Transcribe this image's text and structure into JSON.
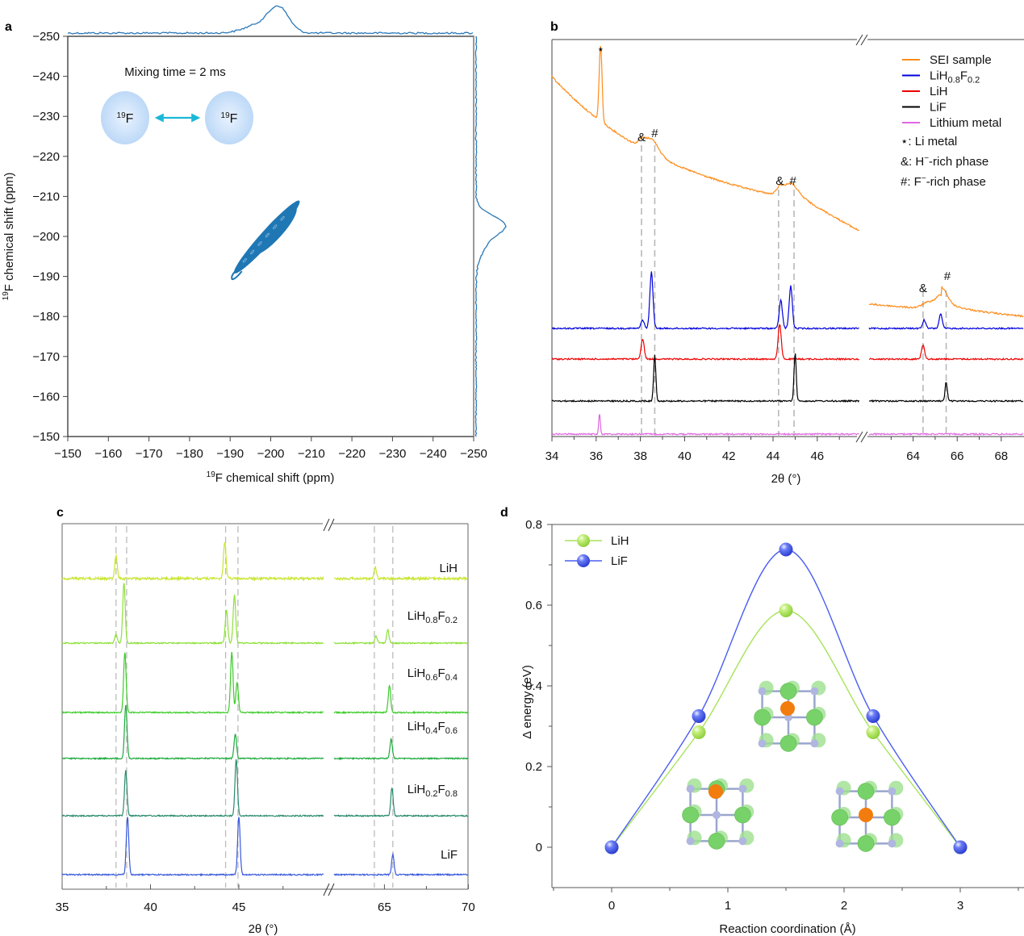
{
  "chart_data": [
    {
      "panel": "a",
      "type": "heatmap",
      "subtype": "2D 19F-19F NMR exchange contour",
      "xlabel_sup": "19",
      "xlabel": "F chemical shift (ppm)",
      "ylabel_sup": "19",
      "ylabel": "F chemical shift (ppm)",
      "xlim": [
        -150,
        -250
      ],
      "ylim": [
        -150,
        -250
      ],
      "xticks": [
        -150,
        -160,
        -170,
        -180,
        -190,
        -200,
        -210,
        -220,
        -230,
        -240,
        -250
      ],
      "yticks": [
        -150,
        -160,
        -170,
        -180,
        -190,
        -200,
        -210,
        -220,
        -230,
        -240,
        -250
      ],
      "tick_labels_x": [
        "−150",
        "−160",
        "−170",
        "−180",
        "−190",
        "−200",
        "−210",
        "−220",
        "−230",
        "−240",
        "−250"
      ],
      "tick_labels_y": [
        "−150",
        "−160",
        "−170",
        "−180",
        "−190",
        "−200",
        "−210",
        "−220",
        "−230",
        "−240",
        "−250"
      ],
      "annotation": "Mixing time = 2 ms",
      "nucleus_left": {
        "sup": "19",
        "label": "F"
      },
      "nucleus_right": {
        "sup": "19",
        "label": "F"
      },
      "contour": {
        "diagonal_from": [
          -190.5,
          -190.5
        ],
        "diagonal_to": [
          -206,
          -208
        ],
        "peak_center": [
          -203,
          -203
        ],
        "color": "#1f77b4"
      },
      "projection_top": {
        "peak_ppm": -202,
        "shoulder_ppm": -197,
        "color": "#1f77b4"
      },
      "projection_right": {
        "peak_ppm": -203,
        "shoulder_ppm": -199,
        "color": "#1f77b4"
      }
    },
    {
      "panel": "b",
      "type": "line",
      "subtype": "XRD patterns (stacked, broken x-axis)",
      "xlabel": "2θ (°)",
      "x_segments": [
        [
          34,
          47.9
        ],
        [
          62,
          69
        ]
      ],
      "xticks": [
        34,
        36,
        38,
        40,
        42,
        44,
        46,
        64,
        66,
        68
      ],
      "tick_labels": [
        "34",
        "36",
        "38",
        "40",
        "42",
        "44",
        "46",
        "64",
        "66",
        "68"
      ],
      "reference_lines": [
        38.05,
        38.65,
        44.25,
        44.95,
        64.45,
        65.5
      ],
      "series": [
        {
          "name": "SEI sample",
          "color": "#ff8c1a",
          "peaks": [
            {
              "x": 36.2,
              "label": "⋆"
            },
            {
              "x": 38.1,
              "label": "&"
            },
            {
              "x": 38.6,
              "label": "#"
            },
            {
              "x": 44.3,
              "label": "&"
            },
            {
              "x": 44.9,
              "label": "#"
            },
            {
              "x": 64.5,
              "label": "&"
            },
            {
              "x": 65.3,
              "label": "#"
            }
          ]
        },
        {
          "name": "LiH0.8F0.2",
          "name_main": "LiH",
          "sub1": "0.8",
          "mid": "F",
          "sub2": "0.2",
          "color": "#0000dd",
          "peaks": [
            {
              "x": 38.1,
              "h": 0.15
            },
            {
              "x": 38.5,
              "h": 1.0
            },
            {
              "x": 44.35,
              "h": 0.5
            },
            {
              "x": 44.8,
              "h": 0.75
            },
            {
              "x": 64.5,
              "h": 0.15
            },
            {
              "x": 65.25,
              "h": 0.25
            }
          ]
        },
        {
          "name": "LiH",
          "color": "#ee0000",
          "peaks": [
            {
              "x": 38.1,
              "h": 0.55
            },
            {
              "x": 44.3,
              "h": 0.95
            },
            {
              "x": 64.45,
              "h": 0.4
            }
          ]
        },
        {
          "name": "LiF",
          "color": "#000000",
          "peaks": [
            {
              "x": 38.65,
              "h": 0.95
            },
            {
              "x": 45.0,
              "h": 1.0
            },
            {
              "x": 65.5,
              "h": 0.4
            }
          ]
        },
        {
          "name": "Lithium metal",
          "color": "#e066e0",
          "peaks": [
            {
              "x": 36.15,
              "h": 0.8
            }
          ]
        }
      ],
      "annotations": [
        "⋆: Li metal",
        "&: H⁻-rich phase",
        "#: F⁻-rich phase"
      ],
      "annotation_parts": [
        {
          "sym": "⋆",
          "text": ": Li metal"
        },
        {
          "sym": "&",
          "text": ": H",
          "sup": "−",
          "rest": "-rich phase"
        },
        {
          "sym": "#",
          "text": ": F",
          "sup": "−",
          "rest": "-rich phase"
        }
      ],
      "legend_position": "top-right"
    },
    {
      "panel": "c",
      "type": "line",
      "subtype": "XRD patterns of LiH(1-x)F(x) solid solutions (stacked, broken x-axis)",
      "xlabel": "2θ (°)",
      "x_segments": [
        [
          35,
          50
        ],
        [
          62,
          70
        ]
      ],
      "xticks": [
        35,
        40,
        45,
        65,
        70
      ],
      "tick_labels": [
        "35",
        "40",
        "45",
        "65",
        "70"
      ],
      "reference_lines": [
        38.05,
        38.65,
        44.25,
        44.95,
        64.4,
        65.5
      ],
      "series": [
        {
          "name": "LiH",
          "main": "LiH",
          "sub1": "",
          "mid": "",
          "sub2": "",
          "color": "#c8e632",
          "peaks": [
            {
              "x": 38.05,
              "h": 0.55
            },
            {
              "x": 44.2,
              "h": 0.9
            },
            {
              "x": 64.45,
              "h": 0.3
            }
          ]
        },
        {
          "name": "LiH0.8F0.2",
          "main": "LiH",
          "sub1": "0.8",
          "mid": "F",
          "sub2": "0.2",
          "color": "#8ee03a",
          "peaks": [
            {
              "x": 38.05,
              "h": 0.15
            },
            {
              "x": 38.5,
              "h": 1.0
            },
            {
              "x": 44.3,
              "h": 0.55
            },
            {
              "x": 44.75,
              "h": 0.8
            },
            {
              "x": 64.5,
              "h": 0.12
            },
            {
              "x": 65.2,
              "h": 0.22
            }
          ]
        },
        {
          "name": "LiH0.6F0.4",
          "main": "LiH",
          "sub1": "0.6",
          "mid": "F",
          "sub2": "0.4",
          "color": "#3ccc28",
          "peaks": [
            {
              "x": 38.55,
              "h": 1.0
            },
            {
              "x": 44.6,
              "h": 1.0
            },
            {
              "x": 44.9,
              "h": 0.5
            },
            {
              "x": 65.3,
              "h": 0.45
            }
          ]
        },
        {
          "name": "LiH0.4F0.6",
          "main": "LiH",
          "sub1": "0.4",
          "mid": "F",
          "sub2": "0.6",
          "color": "#1eaa3c",
          "peaks": [
            {
              "x": 38.6,
              "h": 1.1
            },
            {
              "x": 44.8,
              "h": 0.5
            },
            {
              "x": 65.4,
              "h": 0.4
            }
          ]
        },
        {
          "name": "LiH0.2F0.8",
          "main": "LiH",
          "sub1": "0.2",
          "mid": "F",
          "sub2": "0.8",
          "color": "#2a8a6e",
          "peaks": [
            {
              "x": 38.6,
              "h": 0.8
            },
            {
              "x": 44.85,
              "h": 1.0
            },
            {
              "x": 65.45,
              "h": 0.5
            }
          ]
        },
        {
          "name": "LiF",
          "main": "LiF",
          "sub1": "",
          "mid": "",
          "sub2": "",
          "color": "#3a5adc",
          "peaks": [
            {
              "x": 38.7,
              "h": 1.0
            },
            {
              "x": 45.0,
              "h": 1.0
            },
            {
              "x": 65.5,
              "h": 0.35
            }
          ]
        }
      ]
    },
    {
      "panel": "d",
      "type": "line",
      "subtype": "Migration energy barrier (NEB)",
      "xlabel": "Reaction coordination (Å)",
      "ylabel": "Δ energy (eV)",
      "xlim": [
        -0.5,
        3.5
      ],
      "ylim": [
        -0.1,
        0.8
      ],
      "xticks": [
        0,
        1,
        2,
        3
      ],
      "tick_labels_x": [
        "0",
        "1",
        "2",
        "3"
      ],
      "yticks": [
        0,
        0.2,
        0.4,
        0.6,
        0.8
      ],
      "tick_labels_y": [
        "0",
        "0.2",
        "0.4",
        "0.6",
        "0.8"
      ],
      "series": [
        {
          "name": "LiH",
          "color": "#a6e35a",
          "x": [
            0,
            0.75,
            1.5,
            2.25,
            3.0
          ],
          "y": [
            0,
            0.285,
            0.587,
            0.285,
            0
          ]
        },
        {
          "name": "LiF",
          "color": "#4a5ef0",
          "x": [
            0,
            0.75,
            1.5,
            2.25,
            3.0
          ],
          "y": [
            0,
            0.325,
            0.738,
            0.325,
            0
          ]
        }
      ],
      "legend_position": "top-left",
      "insets": [
        "initial-state-structure",
        "transition-state-structure",
        "final-state-structure"
      ]
    }
  ],
  "panels": {
    "a": "a",
    "b": "b",
    "c": "c",
    "d": "d"
  },
  "axis_break_symbol": "//"
}
